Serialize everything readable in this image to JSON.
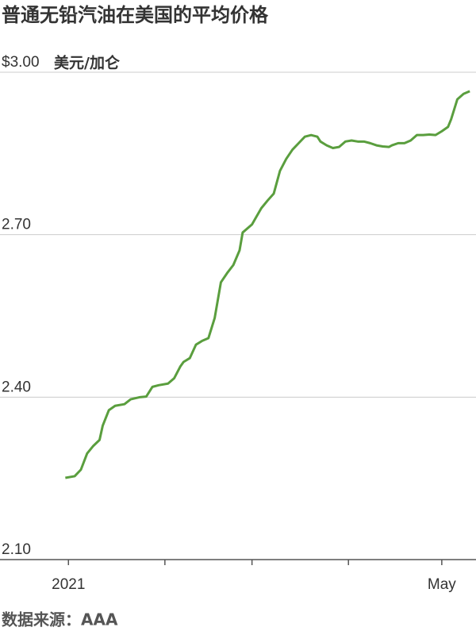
{
  "chart_data": {
    "type": "line",
    "title": "普通无铅汽油在美国的平均价格",
    "y_label": "美元/加仑",
    "source": "数据来源：AAA",
    "x": [
      -1,
      2,
      4,
      6,
      8,
      10,
      11,
      13,
      15,
      18,
      20,
      23,
      25,
      27,
      29,
      32,
      34,
      36,
      37,
      39,
      41,
      43,
      45,
      47,
      49,
      51,
      53,
      55,
      56,
      59,
      60,
      62,
      64,
      66,
      68,
      70,
      72,
      74,
      76,
      78,
      80,
      81,
      83,
      85,
      87,
      89,
      91,
      93,
      95,
      97,
      99,
      101,
      103,
      104,
      106,
      108,
      110,
      112,
      114,
      116,
      118,
      120,
      122,
      123,
      125,
      127,
      129
    ],
    "series": [
      {
        "name": "普通无铅汽油",
        "color": "#5a9e3e",
        "values": [
          2.251,
          2.254,
          2.266,
          2.296,
          2.31,
          2.321,
          2.347,
          2.376,
          2.384,
          2.387,
          2.396,
          2.4,
          2.401,
          2.419,
          2.422,
          2.425,
          2.435,
          2.457,
          2.465,
          2.472,
          2.497,
          2.504,
          2.509,
          2.546,
          2.612,
          2.629,
          2.644,
          2.671,
          2.704,
          2.719,
          2.729,
          2.749,
          2.763,
          2.776,
          2.818,
          2.84,
          2.857,
          2.869,
          2.881,
          2.884,
          2.881,
          2.872,
          2.865,
          2.86,
          2.862,
          2.872,
          2.874,
          2.872,
          2.872,
          2.869,
          2.865,
          2.863,
          2.862,
          2.865,
          2.869,
          2.869,
          2.874,
          2.884,
          2.884,
          2.885,
          2.884,
          2.891,
          2.899,
          2.913,
          2.95,
          2.96,
          2.965
        ]
      }
    ],
    "xlim": [
      -22,
      131
    ],
    "xticks": [
      {
        "value": 0,
        "label": "2021"
      },
      {
        "value": 120,
        "label": "May"
      }
    ],
    "xminor_ticks": [
      31,
      59,
      90
    ],
    "ylim": [
      2.1,
      3.0
    ],
    "yticks": [
      {
        "value": 2.1,
        "label": "2.10"
      },
      {
        "value": 2.4,
        "label": "2.40"
      },
      {
        "value": 2.7,
        "label": "2.70"
      },
      {
        "value": 3.0,
        "label": "$3.00"
      }
    ],
    "grid": true
  }
}
